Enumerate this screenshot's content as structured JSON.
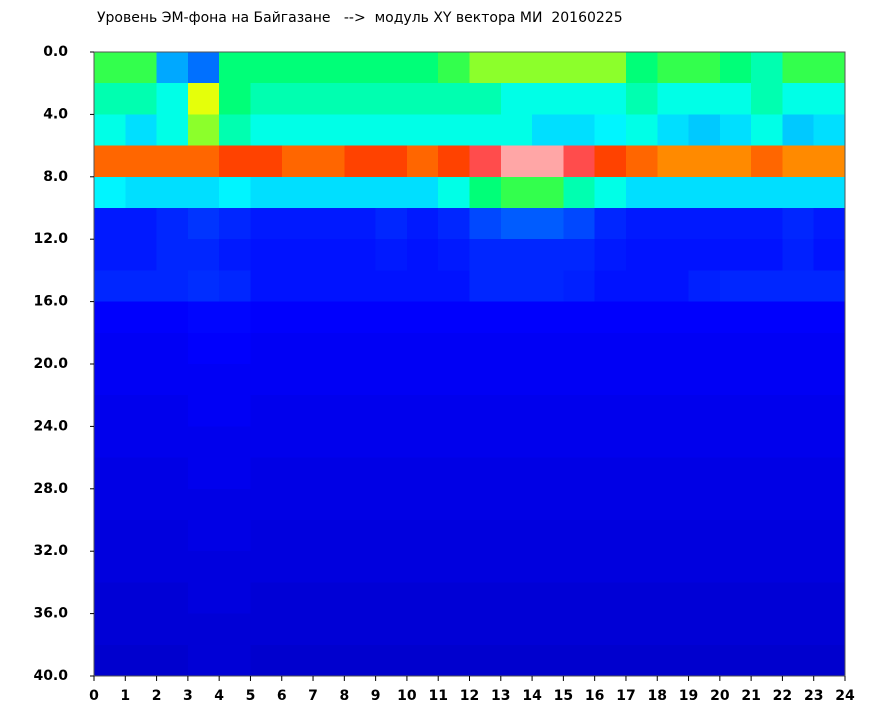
{
  "chart_data": {
    "type": "heatmap",
    "title": "Уровень ЭМ-фона на Байгазане   -->  модуль XY вектора МИ  20160225",
    "x_bins": [
      0,
      1,
      2,
      3,
      4,
      5,
      6,
      7,
      8,
      9,
      10,
      11,
      12,
      13,
      14,
      15,
      16,
      17,
      18,
      19,
      20,
      21,
      22,
      23,
      24
    ],
    "y_bins": [
      0,
      2,
      4,
      6,
      8,
      10,
      12,
      14,
      16,
      18,
      20,
      22,
      24,
      26,
      28,
      30,
      32,
      34,
      36,
      38,
      40
    ],
    "values": [
      [
        0.6,
        0.6,
        0.35,
        0.3,
        0.55,
        0.55,
        0.55,
        0.55,
        0.55,
        0.55,
        0.55,
        0.6,
        0.65,
        0.65,
        0.65,
        0.65,
        0.65,
        0.55,
        0.6,
        0.6,
        0.55,
        0.5,
        0.6,
        0.6
      ],
      [
        0.5,
        0.5,
        0.45,
        0.7,
        0.55,
        0.5,
        0.5,
        0.5,
        0.5,
        0.5,
        0.5,
        0.5,
        0.5,
        0.45,
        0.45,
        0.45,
        0.45,
        0.5,
        0.45,
        0.45,
        0.45,
        0.5,
        0.45,
        0.45
      ],
      [
        0.45,
        0.4,
        0.45,
        0.65,
        0.5,
        0.45,
        0.45,
        0.45,
        0.45,
        0.45,
        0.45,
        0.45,
        0.45,
        0.45,
        0.4,
        0.4,
        0.42,
        0.45,
        0.4,
        0.38,
        0.4,
        0.45,
        0.38,
        0.4
      ],
      [
        0.8,
        0.8,
        0.8,
        0.8,
        0.82,
        0.82,
        0.8,
        0.8,
        0.82,
        0.82,
        0.8,
        0.82,
        0.9,
        0.95,
        0.95,
        0.9,
        0.82,
        0.8,
        0.78,
        0.78,
        0.78,
        0.8,
        0.78,
        0.78
      ],
      [
        0.42,
        0.4,
        0.4,
        0.4,
        0.42,
        0.4,
        0.4,
        0.4,
        0.4,
        0.4,
        0.4,
        0.45,
        0.55,
        0.6,
        0.6,
        0.5,
        0.45,
        0.4,
        0.4,
        0.4,
        0.4,
        0.4,
        0.4,
        0.4
      ],
      [
        0.18,
        0.18,
        0.2,
        0.22,
        0.2,
        0.18,
        0.18,
        0.18,
        0.18,
        0.2,
        0.18,
        0.2,
        0.25,
        0.28,
        0.28,
        0.25,
        0.2,
        0.18,
        0.18,
        0.18,
        0.18,
        0.18,
        0.2,
        0.18
      ],
      [
        0.18,
        0.18,
        0.2,
        0.2,
        0.18,
        0.17,
        0.17,
        0.17,
        0.17,
        0.18,
        0.17,
        0.18,
        0.2,
        0.2,
        0.2,
        0.2,
        0.18,
        0.17,
        0.17,
        0.17,
        0.17,
        0.17,
        0.19,
        0.17
      ],
      [
        0.2,
        0.2,
        0.2,
        0.21,
        0.2,
        0.17,
        0.17,
        0.17,
        0.17,
        0.17,
        0.17,
        0.17,
        0.2,
        0.2,
        0.2,
        0.19,
        0.17,
        0.17,
        0.17,
        0.19,
        0.2,
        0.2,
        0.2,
        0.2
      ],
      [
        0.14,
        0.14,
        0.14,
        0.15,
        0.15,
        0.14,
        0.14,
        0.14,
        0.14,
        0.14,
        0.14,
        0.14,
        0.14,
        0.14,
        0.14,
        0.14,
        0.14,
        0.14,
        0.14,
        0.14,
        0.14,
        0.14,
        0.14,
        0.14
      ],
      [
        0.13,
        0.13,
        0.13,
        0.14,
        0.14,
        0.13,
        0.13,
        0.13,
        0.13,
        0.13,
        0.13,
        0.13,
        0.13,
        0.13,
        0.13,
        0.13,
        0.13,
        0.13,
        0.13,
        0.13,
        0.13,
        0.13,
        0.13,
        0.13
      ],
      [
        0.13,
        0.13,
        0.13,
        0.13,
        0.13,
        0.13,
        0.13,
        0.13,
        0.13,
        0.13,
        0.13,
        0.13,
        0.13,
        0.13,
        0.13,
        0.13,
        0.13,
        0.13,
        0.13,
        0.13,
        0.13,
        0.13,
        0.13,
        0.13
      ],
      [
        0.12,
        0.12,
        0.12,
        0.13,
        0.13,
        0.12,
        0.12,
        0.12,
        0.12,
        0.12,
        0.12,
        0.12,
        0.12,
        0.12,
        0.12,
        0.12,
        0.12,
        0.12,
        0.12,
        0.12,
        0.12,
        0.12,
        0.12,
        0.12
      ],
      [
        0.12,
        0.12,
        0.12,
        0.12,
        0.12,
        0.12,
        0.12,
        0.12,
        0.12,
        0.12,
        0.12,
        0.12,
        0.12,
        0.12,
        0.12,
        0.12,
        0.12,
        0.12,
        0.12,
        0.12,
        0.12,
        0.12,
        0.12,
        0.12
      ],
      [
        0.11,
        0.11,
        0.11,
        0.12,
        0.12,
        0.11,
        0.11,
        0.11,
        0.11,
        0.11,
        0.11,
        0.11,
        0.11,
        0.11,
        0.11,
        0.11,
        0.11,
        0.11,
        0.11,
        0.11,
        0.11,
        0.11,
        0.11,
        0.11
      ],
      [
        0.11,
        0.11,
        0.11,
        0.11,
        0.11,
        0.11,
        0.11,
        0.11,
        0.11,
        0.11,
        0.11,
        0.11,
        0.11,
        0.11,
        0.11,
        0.11,
        0.11,
        0.11,
        0.11,
        0.11,
        0.11,
        0.11,
        0.11,
        0.11
      ],
      [
        0.1,
        0.1,
        0.1,
        0.11,
        0.11,
        0.1,
        0.1,
        0.1,
        0.1,
        0.1,
        0.1,
        0.1,
        0.1,
        0.1,
        0.1,
        0.1,
        0.1,
        0.1,
        0.1,
        0.1,
        0.1,
        0.1,
        0.1,
        0.1
      ],
      [
        0.1,
        0.1,
        0.1,
        0.1,
        0.1,
        0.1,
        0.1,
        0.1,
        0.1,
        0.1,
        0.1,
        0.1,
        0.1,
        0.1,
        0.1,
        0.1,
        0.1,
        0.1,
        0.1,
        0.1,
        0.1,
        0.1,
        0.1,
        0.1
      ],
      [
        0.09,
        0.09,
        0.09,
        0.1,
        0.1,
        0.09,
        0.09,
        0.09,
        0.09,
        0.09,
        0.09,
        0.09,
        0.09,
        0.09,
        0.09,
        0.09,
        0.09,
        0.09,
        0.09,
        0.09,
        0.09,
        0.09,
        0.09,
        0.09
      ],
      [
        0.09,
        0.09,
        0.09,
        0.09,
        0.09,
        0.09,
        0.09,
        0.09,
        0.09,
        0.09,
        0.09,
        0.09,
        0.09,
        0.09,
        0.09,
        0.09,
        0.09,
        0.09,
        0.09,
        0.09,
        0.09,
        0.09,
        0.09,
        0.09
      ],
      [
        0.08,
        0.08,
        0.08,
        0.09,
        0.09,
        0.08,
        0.08,
        0.08,
        0.08,
        0.08,
        0.08,
        0.08,
        0.08,
        0.08,
        0.08,
        0.08,
        0.08,
        0.08,
        0.08,
        0.08,
        0.08,
        0.08,
        0.08,
        0.08
      ]
    ],
    "colorscale": [
      "#000090",
      "#0000ff",
      "#0060ff",
      "#00ffff",
      "#00ff60",
      "#ffff00",
      "#ff0000",
      "#ffffff"
    ],
    "xlim": [
      0,
      24
    ],
    "xticks": [
      0,
      1,
      2,
      3,
      4,
      5,
      6,
      7,
      8,
      9,
      10,
      11,
      12,
      13,
      14,
      15,
      16,
      17,
      18,
      19,
      20,
      21,
      22,
      23,
      24
    ],
    "ylim": [
      0,
      40
    ],
    "yticks": [
      {
        "value": 0,
        "label": "0.0"
      },
      {
        "value": 4,
        "label": "4.0"
      },
      {
        "value": 8,
        "label": "8.0"
      },
      {
        "value": 12,
        "label": "12.0"
      },
      {
        "value": 16,
        "label": "16.0"
      },
      {
        "value": 20,
        "label": "20.0"
      },
      {
        "value": 24,
        "label": "24.0"
      },
      {
        "value": 28,
        "label": "28.0"
      },
      {
        "value": 32,
        "label": "32.0"
      },
      {
        "value": 36,
        "label": "36.0"
      },
      {
        "value": 40,
        "label": "40.0"
      }
    ],
    "y_inverted": true
  }
}
